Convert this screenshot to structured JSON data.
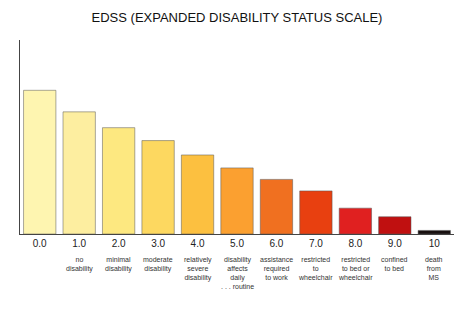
{
  "chart_data": {
    "type": "bar",
    "title": "EDSS (EXPANDED DISABILITY STATUS SCALE)",
    "categories": [
      "0.0",
      "1.0",
      "2.0",
      "3.0",
      "4.0",
      "5.0",
      "6.0",
      "7.0",
      "8.0",
      "9.0",
      "10"
    ],
    "values": [
      10.0,
      8.5,
      7.4,
      6.5,
      5.5,
      4.6,
      3.8,
      3.0,
      1.8,
      1.2,
      0.25
    ],
    "colors": [
      "#fef5b0",
      "#fdeea0",
      "#fde880",
      "#fdd860",
      "#fcc040",
      "#fba030",
      "#f07020",
      "#e84010",
      "#e02020",
      "#c01010",
      "#181010"
    ],
    "ylim": [
      0,
      13.5
    ],
    "grid": false,
    "tick_labels": "x",
    "annotations": [
      {
        "x": "1.0",
        "text": "no\ndisability"
      },
      {
        "x": "2.0",
        "text": "minimal\ndisability"
      },
      {
        "x": "3.0",
        "text": "moderate\ndisability"
      },
      {
        "x": "4.0",
        "text": "relatively\nsevere\ndisability"
      },
      {
        "x": "5.0",
        "text": "disability\naffects\ndaily\n. . . routine"
      },
      {
        "x": "6.0",
        "text": "assistance\nrequired\nto work"
      },
      {
        "x": "7.0",
        "text": "restricted\nto\nwheelchair"
      },
      {
        "x": "8.0",
        "text": "restricted\nto bed or\nwheelchair"
      },
      {
        "x": "9.0",
        "text": "confined\nto bed"
      },
      {
        "x": "10",
        "text": "death\nfrom\nMS"
      }
    ]
  }
}
